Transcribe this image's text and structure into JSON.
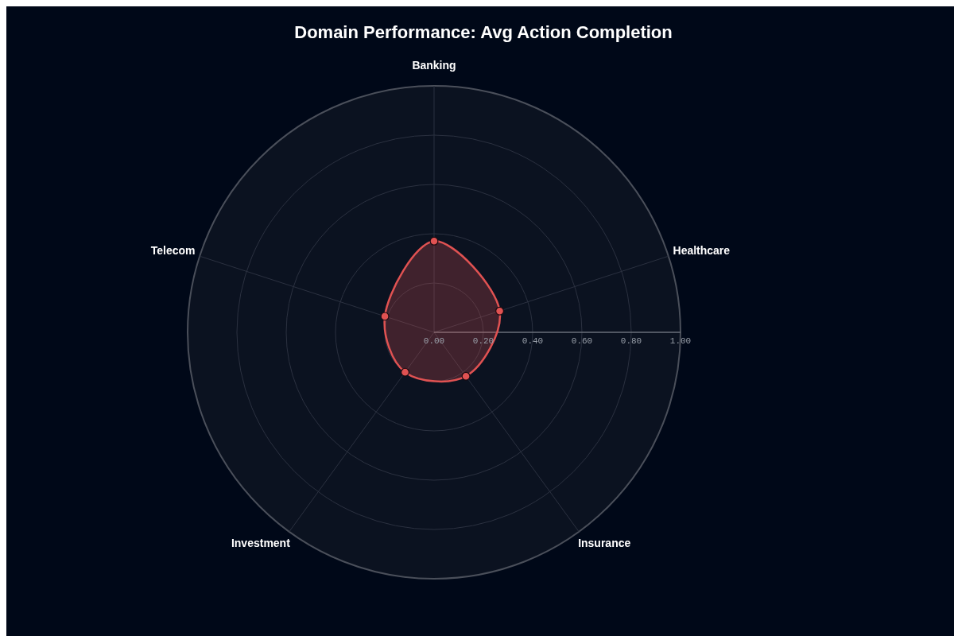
{
  "chart_data": {
    "type": "radar",
    "title": "Domain Performance: Avg Action Completion",
    "categories": [
      "Banking",
      "Healthcare",
      "Insurance",
      "Investment",
      "Telecom"
    ],
    "series": [
      {
        "color": "#e05252",
        "values": [
          0.37,
          0.28,
          0.22,
          0.2,
          0.21
        ]
      }
    ],
    "ylim": [
      0,
      1
    ],
    "yticks": [
      {
        "value": 0,
        "label": "0.00"
      },
      {
        "value": 0.2,
        "label": "0.20"
      },
      {
        "value": 0.4,
        "label": "0.40"
      },
      {
        "value": 0.6,
        "label": "0.60"
      },
      {
        "value": 0.8,
        "label": "0.80"
      },
      {
        "value": 1,
        "label": "1.00"
      }
    ],
    "grid": true,
    "marker": "circle",
    "line_style": "solid"
  }
}
